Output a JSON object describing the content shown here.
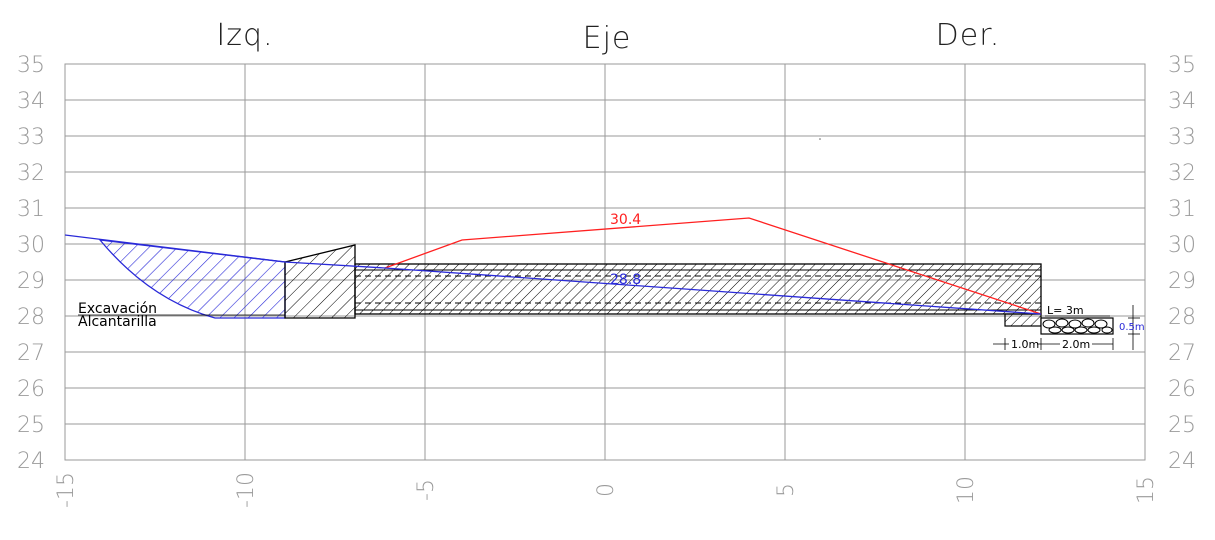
{
  "headers": {
    "left": "Izq.",
    "center": "Eje",
    "right": "Der."
  },
  "y_ticks_left": [
    "35",
    "34",
    "33",
    "32",
    "31",
    "30",
    "29",
    "28",
    "27",
    "26",
    "25",
    "24"
  ],
  "y_ticks_right": [
    "35",
    "34",
    "33",
    "32",
    "31",
    "30",
    "29",
    "28",
    "27",
    "26",
    "25",
    "24"
  ],
  "x_ticks": [
    "-15",
    "-10",
    "-5",
    "0",
    "5",
    "10",
    "15"
  ],
  "labels": {
    "excavation_1": "Excavación",
    "excavation_2": "Alcantarilla",
    "road_elevation": "30.4",
    "ground_elevation": "28.8",
    "length": "L= 3m",
    "depth": "0.5m",
    "dim_1": "1.0m",
    "dim_2": "2.0m"
  },
  "colors": {
    "grid": "#9a9a9a",
    "road": "#ff2020",
    "ground": "#2a2ad8",
    "structure": "#000000"
  },
  "chart_data": {
    "type": "cross-section",
    "x_range": [
      -15,
      15
    ],
    "y_range": [
      24,
      35
    ],
    "road_line": [
      [
        -6.3,
        29.3
      ],
      [
        -4.0,
        30.1
      ],
      [
        4.0,
        30.7
      ],
      [
        12.0,
        28.0
      ]
    ],
    "ground_line": [
      [
        -15,
        30.25
      ],
      [
        -9,
        29.5
      ],
      [
        -6.3,
        29.3
      ],
      [
        12.0,
        28.0
      ]
    ],
    "culvert_bottom_left": [
      [
        -9,
        29.5
      ],
      [
        -9,
        28.0
      ],
      [
        12.0,
        28.0
      ]
    ]
  }
}
